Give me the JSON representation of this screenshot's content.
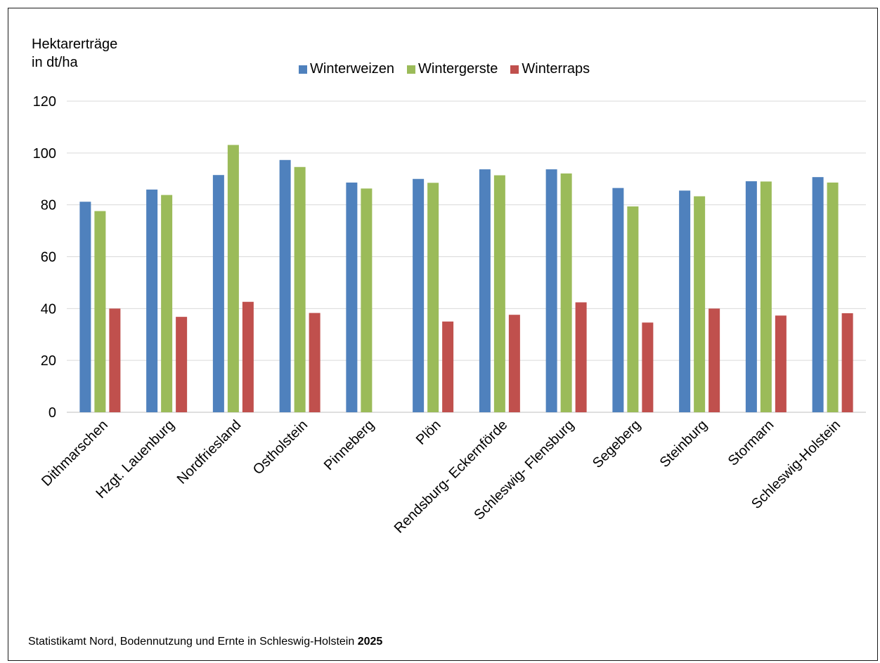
{
  "chart_data": {
    "type": "bar",
    "ylabel": [
      "Hektarerträge",
      "in dt/ha"
    ],
    "ylim": [
      0,
      120
    ],
    "yticks": [
      0,
      20,
      40,
      60,
      80,
      100,
      120
    ],
    "grid": true,
    "legend_position": "top",
    "categories": [
      "Dithmarschen",
      "Hzgt. Lauenburg",
      "Nordfriesland",
      "Ostholstein",
      "Pinneberg",
      "Plön",
      "Rendsburg- Eckernförde",
      "Schleswig- Flensburg",
      "Segeberg",
      "Steinburg",
      "Stormarn",
      "Schleswig-Holstein"
    ],
    "series": [
      {
        "name": "Winterweizen",
        "color": "#4f81bd",
        "values": [
          81.2,
          85.9,
          91.5,
          97.3,
          88.6,
          90.0,
          93.7,
          93.7,
          86.5,
          85.5,
          89.1,
          90.7
        ]
      },
      {
        "name": "Wintergerste",
        "color": "#9bbb59",
        "values": [
          77.6,
          83.8,
          103.1,
          94.6,
          86.3,
          88.5,
          91.4,
          92.1,
          79.4,
          83.3,
          89.0,
          88.6
        ]
      },
      {
        "name": "Winterraps",
        "color": "#c0504d",
        "values": [
          40.0,
          36.8,
          42.6,
          38.3,
          null,
          35.0,
          37.6,
          42.4,
          34.6,
          40.0,
          37.3,
          38.2
        ]
      }
    ]
  },
  "source": {
    "text": "Statistikamt Nord, Bodennutzung und Ernte in Schleswig-Holstein",
    "year": "2025"
  }
}
